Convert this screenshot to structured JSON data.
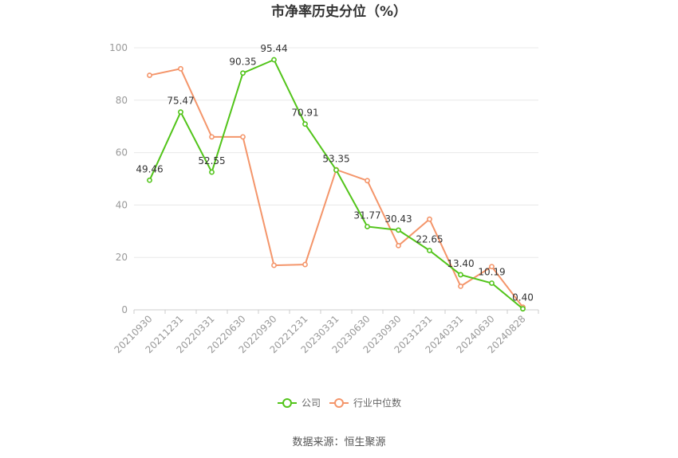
{
  "chart_data": {
    "type": "line",
    "title": "市净率历史分位（%）",
    "source": "数据来源：恒生聚源",
    "categories": [
      "20210930",
      "20211231",
      "20220331",
      "20220630",
      "20220930",
      "20221231",
      "20230331",
      "20230630",
      "20230930",
      "20231231",
      "20240331",
      "20240630",
      "20240828"
    ],
    "ylim": [
      0,
      100
    ],
    "yticks": [
      0,
      20,
      40,
      60,
      80,
      100
    ],
    "grid": true,
    "legend_position": "bottom",
    "series": [
      {
        "name": "公司",
        "color": "#52c41a",
        "values": [
          49.46,
          75.47,
          52.55,
          90.35,
          95.44,
          70.91,
          53.35,
          31.77,
          30.43,
          22.65,
          13.4,
          10.19,
          0.4
        ],
        "labels": [
          "49.46",
          "75.47",
          "52.55",
          "90.35",
          "95.44",
          "70.91",
          "53.35",
          "31.77",
          "30.43",
          "22.65",
          "13.40",
          "10.19",
          "0.40"
        ]
      },
      {
        "name": "行业中位数",
        "color": "#f4956a",
        "values": [
          89.5,
          92,
          66,
          66,
          17,
          17.3,
          53.5,
          49.3,
          24.5,
          34.6,
          9,
          16.5,
          1
        ]
      }
    ]
  }
}
